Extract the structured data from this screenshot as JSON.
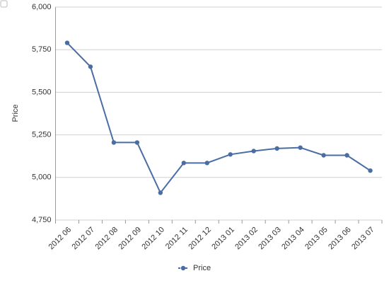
{
  "chart_data": {
    "type": "line",
    "y_label": "Price",
    "categories": [
      "2012 06",
      "2012 07",
      "2012 08",
      "2012 09",
      "2012 10",
      "2012 11",
      "2012 12",
      "2013 01",
      "2013 02",
      "2013 03",
      "2013 04",
      "2013 05",
      "2013 06",
      "2013 07"
    ],
    "series": [
      {
        "name": "Price",
        "color": "#4a6ea3",
        "values": [
          5790,
          5650,
          5205,
          5205,
          4910,
          5085,
          5085,
          5135,
          5155,
          5170,
          5175,
          5130,
          5130,
          5040
        ]
      }
    ],
    "ylim": [
      4750,
      6000
    ],
    "yticks": [
      {
        "value": 4750,
        "label": "4,750"
      },
      {
        "value": 5000,
        "label": "5,000"
      },
      {
        "value": 5250,
        "label": "5,250"
      },
      {
        "value": 5500,
        "label": "5,500"
      },
      {
        "value": 5750,
        "label": "5,750"
      },
      {
        "value": 6000,
        "label": "6,000"
      }
    ],
    "grid": true
  }
}
